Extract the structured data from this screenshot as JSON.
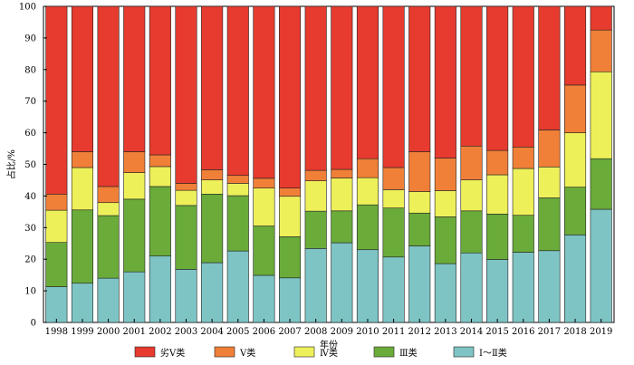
{
  "chart_data": {
    "type": "bar",
    "stacked": true,
    "xlabel": "年份",
    "ylabel": "占比/%",
    "ylim": [
      0,
      100
    ],
    "yticks": [
      0,
      10,
      20,
      30,
      40,
      50,
      60,
      70,
      80,
      90,
      100
    ],
    "categories": [
      "1998",
      "1999",
      "2000",
      "2001",
      "2002",
      "2003",
      "2004",
      "2005",
      "2006",
      "2007",
      "2008",
      "2009",
      "2010",
      "2011",
      "2012",
      "2013",
      "2014",
      "2015",
      "2016",
      "2017",
      "2018",
      "2019"
    ],
    "series": [
      {
        "name": "Ⅰ～Ⅱ类",
        "color": "#7ec4c4",
        "values": [
          11.3,
          12.4,
          14.0,
          16.0,
          21.0,
          16.8,
          18.9,
          22.6,
          14.9,
          14.1,
          23.4,
          25.2,
          23.0,
          20.7,
          24.2,
          18.6,
          22.0,
          19.9,
          22.2,
          22.7,
          27.7,
          35.8
        ]
      },
      {
        "name": "Ⅲ类",
        "color": "#6aab3a",
        "values": [
          14.0,
          23.2,
          19.8,
          23.0,
          22.0,
          20.2,
          21.7,
          17.5,
          15.6,
          13.0,
          11.8,
          10.1,
          14.2,
          15.5,
          10.4,
          14.8,
          13.3,
          14.4,
          11.7,
          16.7,
          15.1,
          16.0
        ]
      },
      {
        "name": "Ⅳ类",
        "color": "#eef05a",
        "values": [
          10.2,
          13.4,
          4.1,
          8.4,
          6.3,
          4.8,
          4.5,
          3.9,
          12.0,
          12.8,
          9.6,
          10.4,
          8.6,
          5.8,
          6.8,
          8.3,
          9.8,
          12.4,
          14.8,
          9.8,
          17.2,
          27.5
        ]
      },
      {
        "name": "Ⅴ类",
        "color": "#f08038",
        "values": [
          5.1,
          5.0,
          5.1,
          6.6,
          3.7,
          2.2,
          3.2,
          2.5,
          3.1,
          2.6,
          3.3,
          2.7,
          6.0,
          7.0,
          12.6,
          10.3,
          10.7,
          7.7,
          6.8,
          11.7,
          15.1,
          13.2
        ]
      },
      {
        "name": "劣Ⅴ类",
        "color": "#e63b2e",
        "values": [
          59.4,
          46.0,
          57.0,
          46.0,
          47.0,
          56.0,
          51.7,
          53.5,
          54.4,
          57.5,
          51.9,
          51.6,
          48.2,
          51.0,
          46.0,
          48.0,
          44.2,
          45.6,
          44.5,
          39.1,
          24.9,
          7.5
        ]
      }
    ],
    "legend_order": [
      "劣Ⅴ类",
      "Ⅴ类",
      "Ⅳ类",
      "Ⅲ类",
      "Ⅰ～Ⅱ类"
    ],
    "legend_position": "bottom-center",
    "grid": false
  }
}
